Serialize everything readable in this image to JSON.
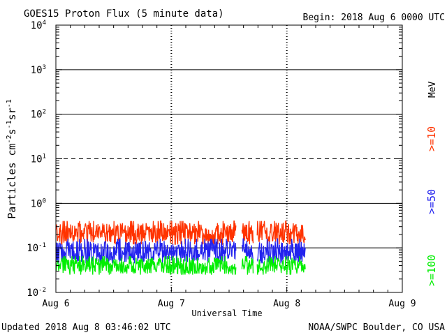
{
  "title": "GOES15 Proton Flux (5 minute data)",
  "begin": "Begin: 2018 Aug 6 0000 UTC",
  "updated": "Updated 2018 Aug  8 03:46:02 UTC",
  "credit": "NOAA/SWPC Boulder, CO USA",
  "colors": {
    "gt10": "#ff3300",
    "gt50": "#2222ee",
    "gt100": "#00ee00",
    "axis": "#000000"
  },
  "chart_data": {
    "type": "line",
    "title": "GOES15 Proton Flux (5 minute data)",
    "xlabel": "Universal Time",
    "ylabel": "Particles cm-2 s-1 sr-1",
    "yscale": "log",
    "ylim": [
      0.01,
      10000
    ],
    "xlim_days": [
      0,
      3
    ],
    "x_ticks": [
      {
        "day": 0,
        "label": "Aug 6"
      },
      {
        "day": 1,
        "label": "Aug 7"
      },
      {
        "day": 2,
        "label": "Aug 8"
      },
      {
        "day": 3,
        "label": "Aug 9"
      }
    ],
    "y_ticks": [
      {
        "exp": -2,
        "base": "10",
        "sup": "-2"
      },
      {
        "exp": -1,
        "base": "10",
        "sup": "-1"
      },
      {
        "exp": 0,
        "base": "10",
        "sup": "0"
      },
      {
        "exp": 1,
        "base": "10",
        "sup": "1"
      },
      {
        "exp": 2,
        "base": "10",
        "sup": "2"
      },
      {
        "exp": 3,
        "base": "10",
        "sup": "3"
      },
      {
        "exp": 4,
        "base": "10",
        "sup": "4"
      }
    ],
    "reference_line": {
      "value": 10,
      "style": "dashed"
    },
    "energy_unit": "MeV",
    "data_end_day": 2.16,
    "data_gaps_days": [
      [
        1.56,
        1.61
      ],
      [
        1.71,
        1.74
      ]
    ],
    "series": [
      {
        "name": ">=10",
        "color": "#ff3300",
        "typical": 0.22,
        "min": 0.12,
        "max": 0.4
      },
      {
        "name": ">=50",
        "color": "#2222ee",
        "typical": 0.08,
        "min": 0.045,
        "max": 0.16
      },
      {
        "name": ">=100",
        "color": "#00ee00",
        "typical": 0.04,
        "min": 0.025,
        "max": 0.065
      }
    ]
  }
}
